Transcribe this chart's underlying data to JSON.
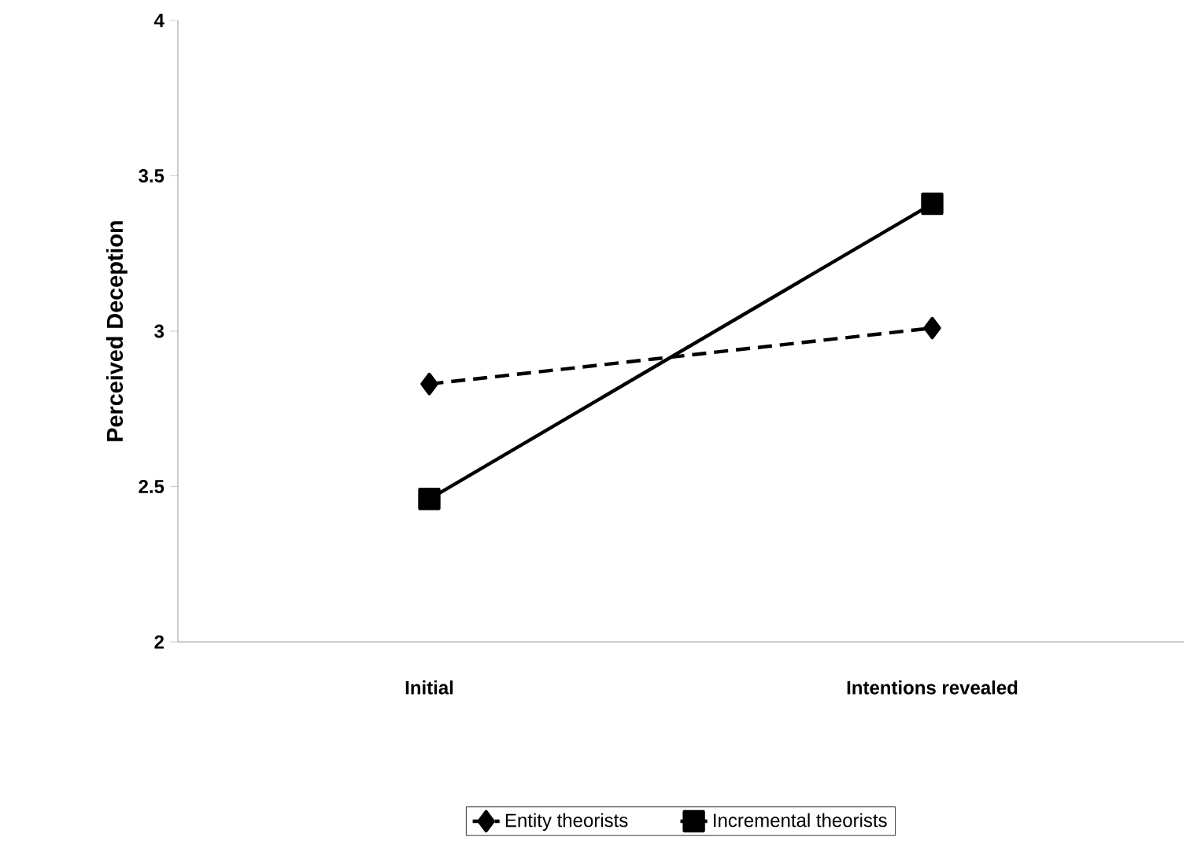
{
  "chart_data": {
    "type": "line",
    "ylabel": "Perceived Deception",
    "categories": [
      "Initial",
      "Intentions revealed"
    ],
    "series": [
      {
        "name": "Entity theorists",
        "color": "#000000",
        "values": [
          2.83,
          3.01
        ],
        "marker": "diamond",
        "line_style": "dashed"
      },
      {
        "name": "Incremental theorists",
        "color": "#000000",
        "values": [
          2.46,
          3.41
        ],
        "marker": "square",
        "line_style": "solid"
      }
    ],
    "ylim": [
      2,
      4
    ],
    "yticks": [
      2,
      2.5,
      3,
      3.5,
      4
    ],
    "grid": false,
    "legend": "bottom"
  }
}
